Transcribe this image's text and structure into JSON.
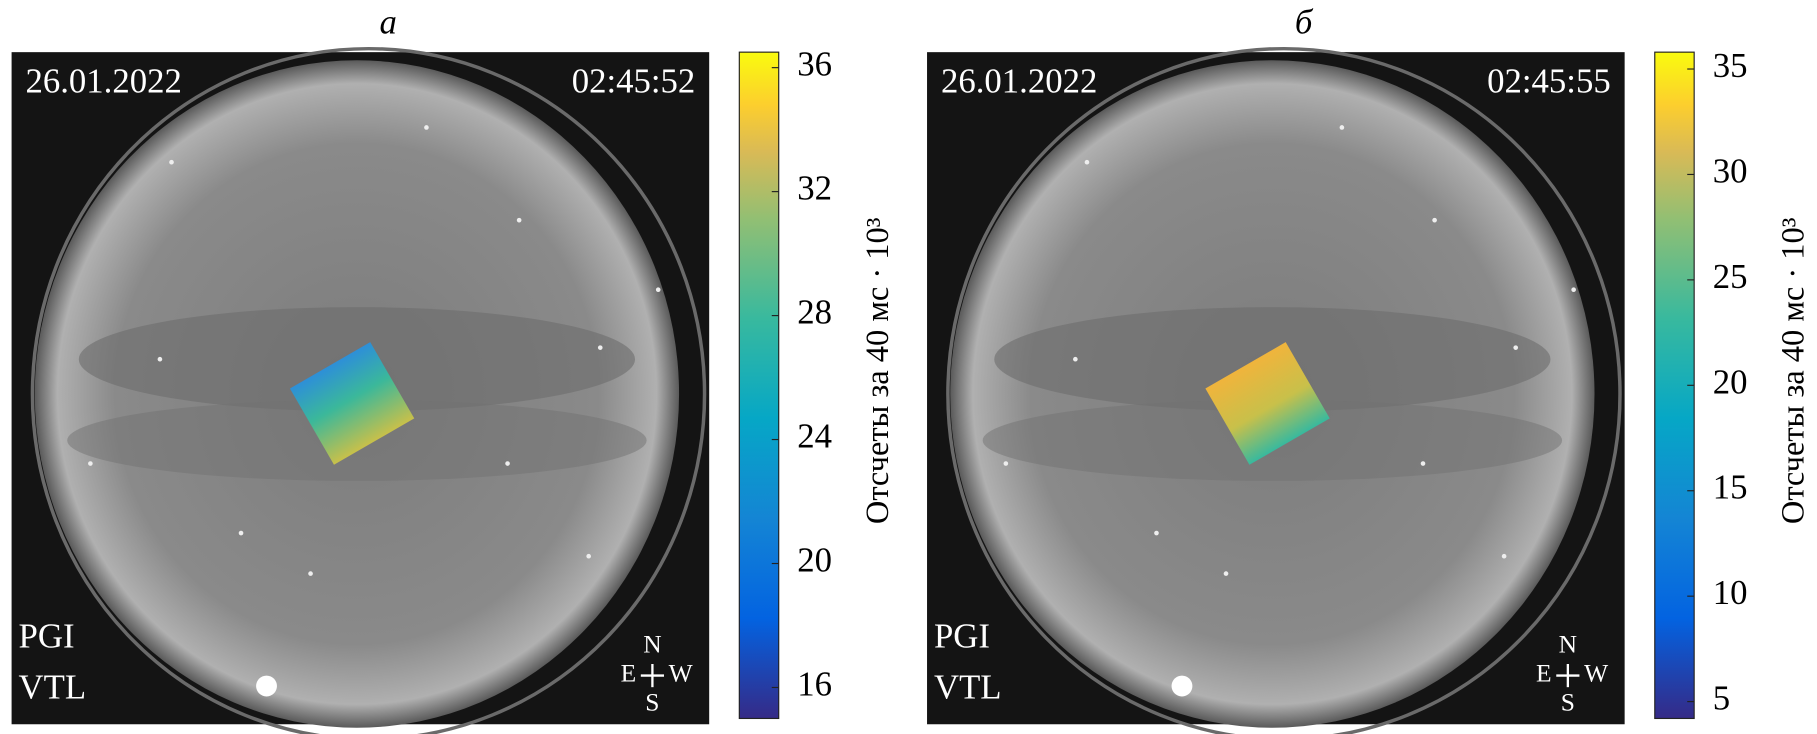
{
  "panels": [
    {
      "label": "а",
      "date": "26.01.2022",
      "time": "02:45:52",
      "station": [
        "PGI",
        "VTL"
      ],
      "compass": {
        "n": "N",
        "e": "E",
        "w": "W",
        "s": "S"
      },
      "colorbar": {
        "label": "Отсчеты за 40 мс · 10³",
        "lim": [
          15,
          36.5
        ],
        "ticks": [
          16,
          20,
          24,
          28,
          32,
          36
        ]
      }
    },
    {
      "label": "б",
      "date": "26.01.2022",
      "time": "02:45:55",
      "station": [
        "PGI",
        "VTL"
      ],
      "compass": {
        "n": "N",
        "e": "E",
        "w": "W",
        "s": "S"
      },
      "colorbar": {
        "label": "Отсчеты за 40 мс · 10³",
        "lim": [
          4.2,
          35.8
        ],
        "ticks": [
          5,
          10,
          15,
          20,
          25,
          30,
          35
        ]
      }
    }
  ]
}
